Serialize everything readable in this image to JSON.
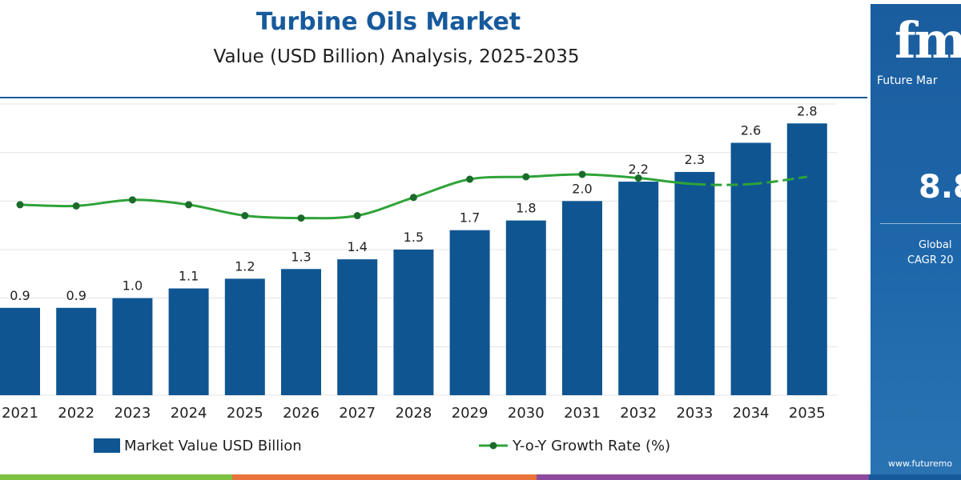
{
  "header": {
    "title": "Turbine Oils Market",
    "subtitle": "Value (USD Billion) Analysis, 2025-2035"
  },
  "side_panel": {
    "logo_text": "fmi",
    "brand": "Future Mar",
    "cagr_value": "8.8",
    "cagr_line1": "Global",
    "cagr_line2": "CAGR 20",
    "website": "www.futuremo",
    "color": "#1a5d9e"
  },
  "colors": {
    "bar": "#0f5592",
    "line": "#2ea338",
    "title": "#175a9c",
    "strip": [
      "#7dc142",
      "#e8743b",
      "#8e4a9e",
      "#175a9c"
    ]
  },
  "chart_data": {
    "type": "bar",
    "categories": [
      "2021",
      "2022",
      "2023",
      "2024",
      "2025",
      "2026",
      "2027",
      "2028",
      "2029",
      "2030",
      "2031",
      "2032",
      "2033",
      "2034",
      "2035"
    ],
    "series": [
      {
        "name": "Market Value USD Billion",
        "type": "bar",
        "values": [
          0.9,
          0.9,
          1.0,
          1.1,
          1.2,
          1.3,
          1.4,
          1.5,
          1.7,
          1.8,
          2.0,
          2.2,
          2.3,
          2.6,
          2.8
        ],
        "labels": [
          "0.9",
          "0.9",
          "1.0",
          "1.1",
          "1.2",
          "1.3",
          "1.4",
          "1.5",
          "1.7",
          "1.8",
          "2.0",
          "2.2",
          "2.3",
          "2.6",
          "2.8"
        ]
      },
      {
        "name": "Y-o-Y Growth Rate (%)",
        "type": "line",
        "values": [
          7.7,
          7.6,
          8.1,
          7.7,
          6.8,
          6.6,
          6.8,
          8.3,
          9.8,
          10.0,
          10.2,
          9.9,
          9.4,
          9.4,
          10.0
        ],
        "line_style": [
          "solid",
          "solid",
          "solid",
          "solid",
          "solid",
          "solid",
          "solid",
          "solid",
          "solid",
          "solid",
          "solid",
          "solid",
          "dashed",
          "dashed"
        ]
      }
    ],
    "ylim": [
      0,
      3.0
    ],
    "y2lim": [
      -8,
      16
    ],
    "grid": true,
    "legend_position": "bottom"
  }
}
